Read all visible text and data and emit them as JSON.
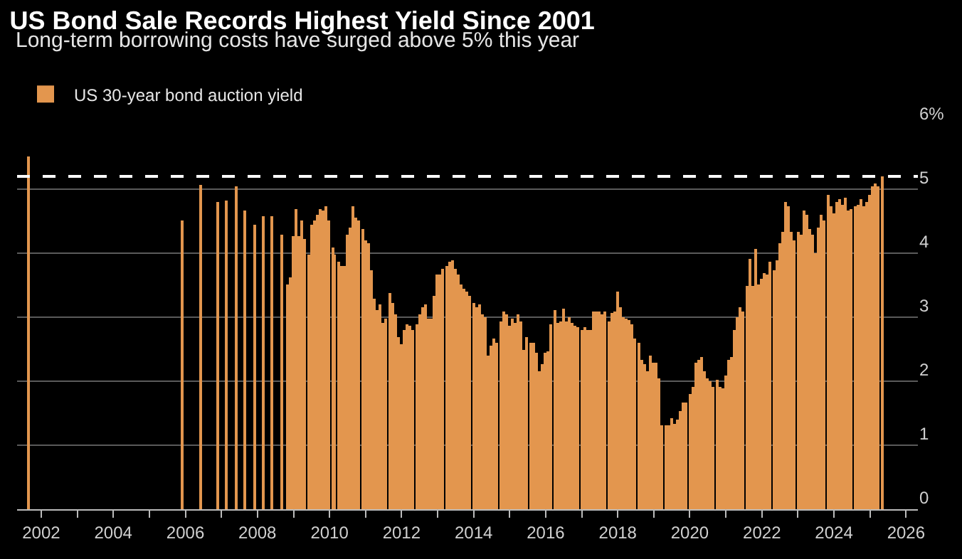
{
  "chart_data": {
    "type": "bar",
    "title": "US Bond Sale Records Highest Yield Since 2001",
    "subtitle": "Long-term borrowing costs have surged above 5% this year",
    "x": [
      "2001-09",
      "2005-12",
      "2006-06",
      "2006-12",
      "2007-03",
      "2007-06",
      "2007-09",
      "2007-12",
      "2008-03",
      "2008-06",
      "2008-09",
      "2008-11",
      "2008-12",
      "2009-01",
      "2009-02",
      "2009-03",
      "2009-04",
      "2009-05",
      "2009-06",
      "2009-07",
      "2009-08",
      "2009-09",
      "2009-10",
      "2009-11",
      "2009-12",
      "2010-01",
      "2010-02",
      "2010-03",
      "2010-04",
      "2010-05",
      "2010-06",
      "2010-07",
      "2010-08",
      "2010-09",
      "2010-10",
      "2010-11",
      "2010-12",
      "2011-01",
      "2011-02",
      "2011-03",
      "2011-04",
      "2011-05",
      "2011-06",
      "2011-07",
      "2011-08",
      "2011-09",
      "2011-10",
      "2011-11",
      "2011-12",
      "2012-01",
      "2012-02",
      "2012-03",
      "2012-04",
      "2012-05",
      "2012-06",
      "2012-07",
      "2012-08",
      "2012-09",
      "2012-10",
      "2012-11",
      "2012-12",
      "2013-01",
      "2013-02",
      "2013-03",
      "2013-04",
      "2013-05",
      "2013-06",
      "2013-07",
      "2013-08",
      "2013-09",
      "2013-10",
      "2013-11",
      "2013-12",
      "2014-01",
      "2014-02",
      "2014-03",
      "2014-04",
      "2014-05",
      "2014-06",
      "2014-07",
      "2014-08",
      "2014-09",
      "2014-10",
      "2014-11",
      "2014-12",
      "2015-01",
      "2015-02",
      "2015-03",
      "2015-04",
      "2015-05",
      "2015-06",
      "2015-07",
      "2015-08",
      "2015-09",
      "2015-10",
      "2015-11",
      "2015-12",
      "2016-01",
      "2016-02",
      "2016-03",
      "2016-04",
      "2016-05",
      "2016-06",
      "2016-07",
      "2016-08",
      "2016-09",
      "2016-10",
      "2016-11",
      "2016-12",
      "2017-01",
      "2017-02",
      "2017-03",
      "2017-04",
      "2017-05",
      "2017-06",
      "2017-07",
      "2017-08",
      "2017-09",
      "2017-10",
      "2017-11",
      "2017-12",
      "2018-01",
      "2018-02",
      "2018-03",
      "2018-04",
      "2018-05",
      "2018-06",
      "2018-07",
      "2018-08",
      "2018-09",
      "2018-10",
      "2018-11",
      "2018-12",
      "2019-01",
      "2019-02",
      "2019-03",
      "2019-04",
      "2019-05",
      "2019-06",
      "2019-07",
      "2019-08",
      "2019-09",
      "2019-10",
      "2019-11",
      "2019-12",
      "2020-01",
      "2020-02",
      "2020-03",
      "2020-04",
      "2020-05",
      "2020-06",
      "2020-07",
      "2020-08",
      "2020-09",
      "2020-10",
      "2020-11",
      "2020-12",
      "2021-01",
      "2021-02",
      "2021-03",
      "2021-04",
      "2021-05",
      "2021-06",
      "2021-07",
      "2021-08",
      "2021-09",
      "2021-10",
      "2021-11",
      "2021-12",
      "2022-01",
      "2022-02",
      "2022-03",
      "2022-04",
      "2022-05",
      "2022-06",
      "2022-07",
      "2022-08",
      "2022-09",
      "2022-10",
      "2022-11",
      "2022-12",
      "2023-01",
      "2023-02",
      "2023-03",
      "2023-04",
      "2023-05",
      "2023-06",
      "2023-07",
      "2023-08",
      "2023-09",
      "2023-10",
      "2023-11",
      "2023-12",
      "2024-01",
      "2024-02",
      "2024-03",
      "2024-04",
      "2024-05",
      "2024-06",
      "2024-07",
      "2024-08",
      "2024-09",
      "2024-10",
      "2024-11",
      "2024-12",
      "2025-01",
      "2025-02",
      "2025-03",
      "2025-04",
      "2025-05"
    ],
    "series": [
      {
        "name": "US 30-year bond auction yield",
        "color": "#e3964e",
        "values": [
          5.51,
          4.51,
          5.07,
          4.8,
          4.83,
          5.05,
          4.66,
          4.44,
          4.58,
          4.58,
          4.3,
          3.51,
          3.62,
          4.26,
          4.69,
          4.26,
          4.51,
          4.23,
          3.98,
          4.44,
          4.51,
          4.59,
          4.69,
          4.66,
          4.74,
          4.51,
          4.09,
          3.98,
          3.87,
          3.8,
          3.81,
          4.3,
          4.41,
          4.73,
          4.55,
          4.51,
          4.37,
          4.19,
          4.16,
          3.73,
          3.3,
          3.12,
          3.19,
          2.91,
          2.98,
          3.37,
          3.23,
          3.05,
          2.69,
          2.57,
          2.8,
          2.89,
          2.87,
          2.81,
          2.89,
          3.05,
          3.16,
          3.21,
          2.98,
          2.98,
          3.34,
          3.66,
          3.66,
          3.76,
          3.8,
          3.87,
          3.89,
          3.76,
          3.66,
          3.51,
          3.44,
          3.41,
          3.34,
          3.23,
          3.16,
          3.19,
          3.05,
          3.01,
          2.41,
          2.55,
          2.66,
          2.59,
          2.94,
          3.1,
          3.05,
          2.87,
          2.98,
          2.91,
          3.05,
          2.94,
          2.48,
          2.69,
          2.59,
          2.6,
          2.44,
          2.16,
          2.26,
          2.44,
          2.46,
          2.89,
          3.12,
          2.91,
          2.94,
          3.14,
          2.94,
          3.01,
          2.91,
          2.87,
          2.84,
          2.79,
          2.84,
          2.79,
          2.8,
          3.1,
          3.09,
          3.1,
          3.05,
          3.09,
          2.94,
          3.06,
          3.09,
          3.39,
          3.16,
          3.0,
          2.98,
          2.96,
          2.89,
          2.66,
          2.59,
          2.34,
          2.26,
          2.16,
          2.41,
          2.3,
          2.3,
          2.05,
          1.31,
          1.31,
          1.31,
          1.43,
          1.34,
          1.41,
          1.53,
          1.66,
          1.66,
          1.8,
          1.91,
          2.29,
          2.34,
          2.37,
          2.16,
          2.05,
          2.01,
          1.91,
          2.03,
          1.91,
          1.89,
          2.09,
          2.34,
          2.37,
          2.8,
          3.0,
          3.16,
          3.1,
          3.5,
          3.91,
          3.5,
          4.07,
          3.51,
          3.6,
          3.69,
          3.66,
          3.87,
          3.73,
          3.89,
          4.16,
          4.34,
          4.81,
          4.73,
          4.34,
          4.21,
          4.34,
          4.29,
          4.66,
          4.59,
          4.37,
          4.3,
          4.01,
          4.39,
          4.59,
          4.51,
          4.91,
          4.73,
          4.62,
          4.8,
          4.84,
          4.76,
          4.87,
          4.66,
          4.69,
          4.73,
          4.76,
          4.84,
          4.73,
          4.8,
          4.91,
          5.05,
          5.09,
          5.05,
          5.19
        ]
      }
    ],
    "xlim": [
      "2001-05",
      "2026-05"
    ],
    "xticks": [
      {
        "value": "2002",
        "label": "2002"
      },
      {
        "value": "2003",
        "label": null
      },
      {
        "value": "2004",
        "label": "2004"
      },
      {
        "value": "2005",
        "label": null
      },
      {
        "value": "2006",
        "label": "2006"
      },
      {
        "value": "2007",
        "label": null
      },
      {
        "value": "2008",
        "label": "2008"
      },
      {
        "value": "2009",
        "label": null
      },
      {
        "value": "2010",
        "label": "2010"
      },
      {
        "value": "2011",
        "label": null
      },
      {
        "value": "2012",
        "label": "2012"
      },
      {
        "value": "2013",
        "label": null
      },
      {
        "value": "2014",
        "label": "2014"
      },
      {
        "value": "2015",
        "label": null
      },
      {
        "value": "2016",
        "label": "2016"
      },
      {
        "value": "2017",
        "label": null
      },
      {
        "value": "2018",
        "label": "2018"
      },
      {
        "value": "2019",
        "label": null
      },
      {
        "value": "2020",
        "label": "2020"
      },
      {
        "value": "2021",
        "label": null
      },
      {
        "value": "2022",
        "label": "2022"
      },
      {
        "value": "2023",
        "label": null
      },
      {
        "value": "2024",
        "label": "2024"
      },
      {
        "value": "2025",
        "label": null
      },
      {
        "value": "2026",
        "label": "2026"
      }
    ],
    "ylim": [
      0,
      6
    ],
    "yticks": [
      0,
      1,
      2,
      3,
      4,
      5,
      {
        "value": 6,
        "label": "6%"
      }
    ],
    "ref_lines": [
      {
        "axis": "y",
        "value": 5.2,
        "color": "#ffffff",
        "line_style": "dashed"
      }
    ],
    "grid": "y",
    "legend": "top left"
  }
}
